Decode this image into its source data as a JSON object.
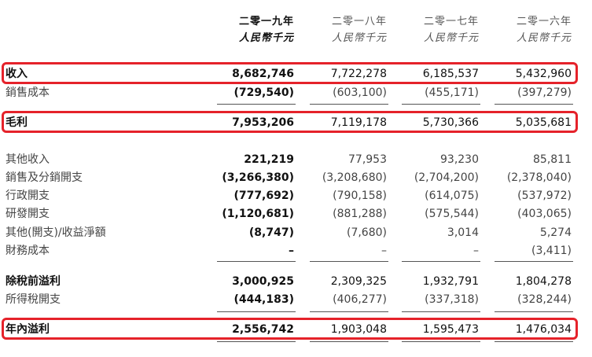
{
  "columns": [
    {
      "year": "二零一九年",
      "unit": "人民幣千元"
    },
    {
      "year": "二零一八年",
      "unit": "人民幣千元"
    },
    {
      "year": "二零一七年",
      "unit": "人民幣千元"
    },
    {
      "year": "二零一六年",
      "unit": "人民幣千元"
    }
  ],
  "rows": [
    {
      "label": "收入",
      "values": [
        "8,682,746",
        "7,722,278",
        "6,185,537",
        "5,432,960"
      ]
    },
    {
      "label": "銷售成本",
      "values": [
        "(729,540)",
        "(603,100)",
        "(455,171)",
        "(397,279)"
      ]
    },
    {
      "label": "毛利",
      "values": [
        "7,953,206",
        "7,119,178",
        "5,730,366",
        "5,035,681"
      ]
    },
    {
      "label": "其他收入",
      "values": [
        "221,219",
        "77,953",
        "93,230",
        "85,811"
      ]
    },
    {
      "label": "銷售及分銷開支",
      "values": [
        "(3,266,380)",
        "(3,208,680)",
        "(2,704,200)",
        "(2,378,040)"
      ]
    },
    {
      "label": "行政開支",
      "values": [
        "(777,692)",
        "(790,158)",
        "(614,075)",
        "(537,972)"
      ]
    },
    {
      "label": "研發開支",
      "values": [
        "(1,120,681)",
        "(881,288)",
        "(575,544)",
        "(403,065)"
      ]
    },
    {
      "label": "其他(開支)/收益淨額",
      "values": [
        "(8,747)",
        "(7,680)",
        "3,014",
        "5,274"
      ]
    },
    {
      "label": "財務成本",
      "values": [
        "–",
        "–",
        "–",
        "(3,411)"
      ]
    },
    {
      "label": "除稅前溢利",
      "values": [
        "3,000,925",
        "2,309,325",
        "1,932,791",
        "1,804,278"
      ]
    },
    {
      "label": "所得稅開支",
      "values": [
        "(444,183)",
        "(406,277)",
        "(337,318)",
        "(328,244)"
      ]
    },
    {
      "label": "年內溢利",
      "values": [
        "2,556,742",
        "1,903,048",
        "1,595,473",
        "1,476,034"
      ]
    }
  ],
  "colors": {
    "highlight": "#e5222a",
    "rule": "#555555"
  }
}
